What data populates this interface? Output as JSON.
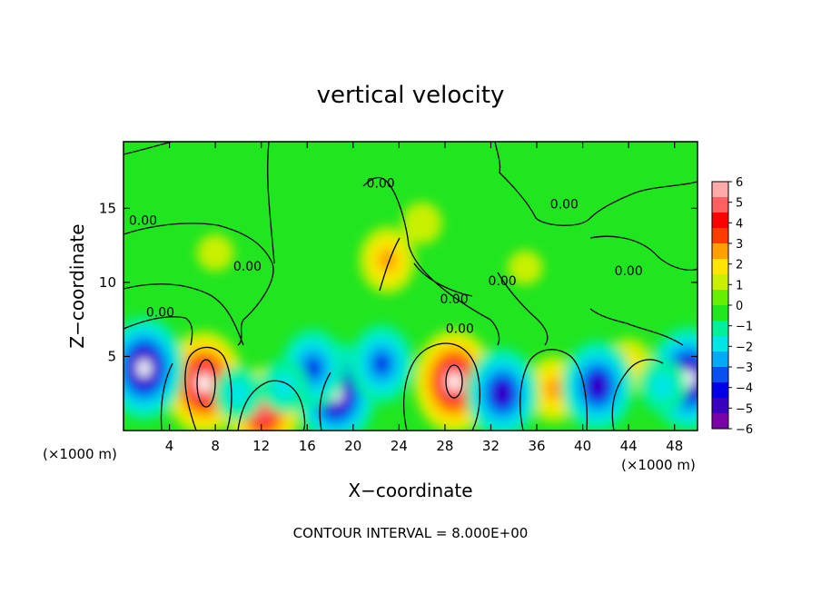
{
  "chart_data": {
    "type": "heatmap",
    "title": "vertical velocity",
    "xlabel": "X−coordinate",
    "ylabel": "Z−coordinate",
    "x_unit": "(×1000 m)",
    "x_ticks": [
      4,
      8,
      12,
      16,
      20,
      24,
      28,
      32,
      36,
      40,
      44,
      48
    ],
    "y_ticks": [
      5,
      10,
      15
    ],
    "xlim": [
      0,
      50
    ],
    "ylim": [
      0,
      19.5
    ],
    "colorbar": {
      "ticks": [
        6,
        5,
        4,
        3,
        2,
        1,
        0,
        "−1",
        "−2",
        "−3",
        "−4",
        "−5",
        "−6"
      ],
      "range": [
        -6,
        6
      ],
      "colors": [
        "#7a00a8",
        "#3a00c0",
        "#0000e6",
        "#0a50f0",
        "#00aaf5",
        "#00e6e6",
        "#00f09a",
        "#20e620",
        "#66f000",
        "#c8f000",
        "#ffe600",
        "#ffa000",
        "#ff3c00",
        "#ff0000",
        "#ff6060",
        "#ffaaaa"
      ]
    },
    "contour_labels": [
      {
        "text": "0.00",
        "x": 1.7,
        "z": 13.9
      },
      {
        "text": "0.00",
        "x": 10.8,
        "z": 10.8
      },
      {
        "text": "0.00",
        "x": 3.2,
        "z": 7.7
      },
      {
        "text": "0.00",
        "x": 22.4,
        "z": 16.4
      },
      {
        "text": "0.00",
        "x": 28.8,
        "z": 8.6
      },
      {
        "text": "0.00",
        "x": 29.3,
        "z": 6.6
      },
      {
        "text": "0.00",
        "x": 33.0,
        "z": 9.8
      },
      {
        "text": "0.00",
        "x": 38.4,
        "z": 15.0
      },
      {
        "text": "0.00",
        "x": 44.0,
        "z": 10.5
      }
    ],
    "features": [
      {
        "x": 7.0,
        "z": 3.2,
        "value": 6
      },
      {
        "x": 12.2,
        "z": 1.2,
        "value": 5
      },
      {
        "x": 23.0,
        "z": 11.5,
        "value": 3
      },
      {
        "x": 28.8,
        "z": 3.3,
        "value": 6
      },
      {
        "x": 37.5,
        "z": 2.8,
        "value": 3
      },
      {
        "x": 44.0,
        "z": 4.4,
        "value": 2
      },
      {
        "x": 1.8,
        "z": 4.2,
        "value": -6
      },
      {
        "x": 18.5,
        "z": 2.5,
        "value": -6
      },
      {
        "x": 16.5,
        "z": 4.2,
        "value": -4
      },
      {
        "x": 22.5,
        "z": 4.5,
        "value": -4
      },
      {
        "x": 33.0,
        "z": 2.5,
        "value": -5
      },
      {
        "x": 41.3,
        "z": 3.0,
        "value": -5
      },
      {
        "x": 49.2,
        "z": 3.5,
        "value": -6
      },
      {
        "x": 47.0,
        "z": 3.0,
        "value": -2
      },
      {
        "x": 10.0,
        "z": 2.5,
        "value": -2
      },
      {
        "x": 14.0,
        "z": 3.0,
        "value": -2
      },
      {
        "x": 26.0,
        "z": 14.0,
        "value": 1
      },
      {
        "x": 8.0,
        "z": 12.0,
        "value": 0.6
      },
      {
        "x": 35.0,
        "z": 11.0,
        "value": 0.4
      }
    ]
  },
  "footer": {
    "contour_interval": "CONTOUR INTERVAL =  8.000E+00"
  }
}
